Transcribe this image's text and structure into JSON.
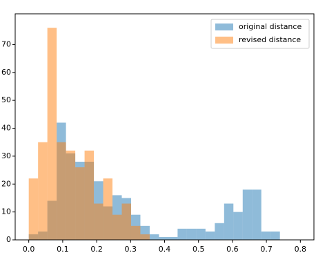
{
  "chart_data": {
    "type": "histogram",
    "series": [
      {
        "name": "original distance",
        "color": "#1f77b4",
        "bins": [
          0,
          0.0274,
          0.0548,
          0.0822,
          0.1096,
          0.137,
          0.1644,
          0.1918,
          0.2192,
          0.2466,
          0.274,
          0.3014,
          0.3288,
          0.3562,
          0.3836,
          0.411,
          0.4384,
          0.4658,
          0.4932,
          0.5206,
          0.548,
          0.5754,
          0.6028,
          0.6302,
          0.6576,
          0.685,
          0.7124,
          0.7398
        ],
        "values": [
          2,
          3,
          14,
          42,
          31,
          28,
          28,
          21,
          12,
          16,
          15,
          9,
          5,
          2,
          1,
          1,
          4,
          4,
          4,
          3,
          6,
          13,
          10,
          18,
          18,
          3,
          3
        ]
      },
      {
        "name": "revised distance",
        "color": "#ff7f0e",
        "bins": [
          0,
          0.0274,
          0.0548,
          0.0822,
          0.1096,
          0.137,
          0.1644,
          0.1918,
          0.2192,
          0.2466,
          0.274,
          0.3014,
          0.3288,
          0.3562
        ],
        "values": [
          22,
          35,
          76,
          35,
          32,
          26,
          32,
          13,
          22,
          9,
          13,
          5,
          2
        ]
      }
    ],
    "alpha": 0.5,
    "xlim": [
      -0.04,
      0.84
    ],
    "xticks": [
      {
        "value": 0,
        "label": "0.0"
      },
      0.1,
      0.2,
      0.3,
      0.4,
      0.5,
      0.6,
      0.7,
      0.8
    ],
    "ylim": [
      0,
      81
    ],
    "yticks": [
      0,
      10,
      20,
      30,
      40,
      50,
      60,
      70
    ],
    "legend": "upper right"
  }
}
